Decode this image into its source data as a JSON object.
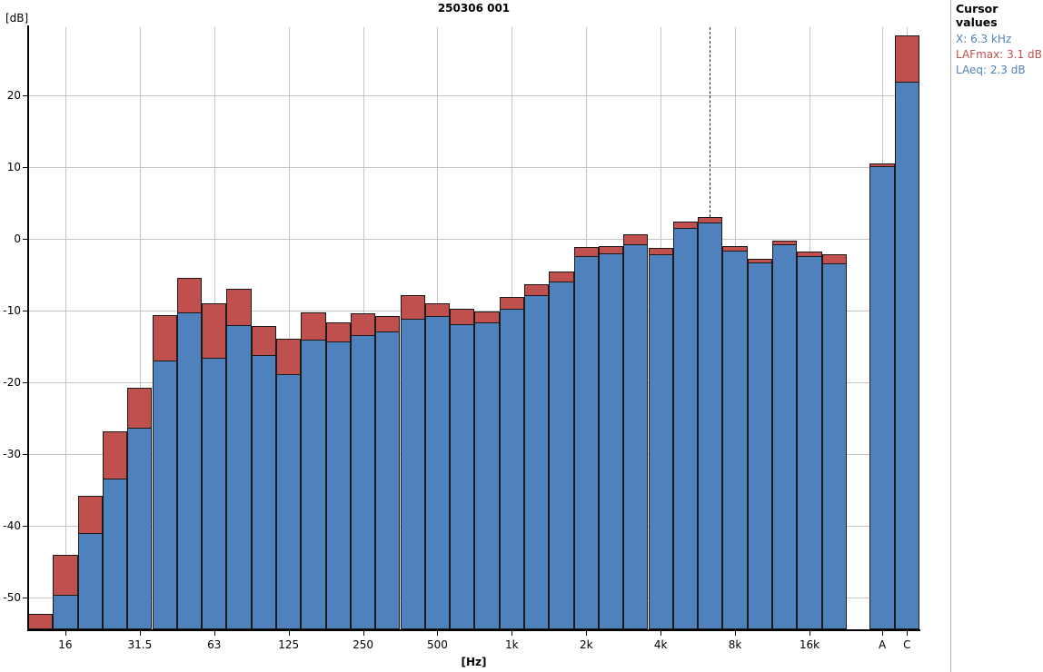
{
  "title": "250306 001",
  "y_unit_label": "[dB]",
  "x_unit_label": "[Hz]",
  "cursor_panel": {
    "title": "Cursor values",
    "x_value": "X: 6.3 kHz",
    "lafmax_value": "LAFmax: 3.1 dB",
    "laeq_value": "LAeq: 2.3 dB"
  },
  "colors": {
    "laeq_bar": "#4f81bd",
    "lafmax_bar": "#c0504d",
    "bar_border": "#1a1a1a",
    "grid": "#c6c6c6",
    "axis": "#000000",
    "panel_blue_text": "#4f81bd",
    "panel_red_text": "#c0504d"
  },
  "chart_data": {
    "type": "bar",
    "subtype": "third-octave-spectrum",
    "title": "250306 001",
    "xlabel": "[Hz]",
    "ylabel": "[dB]",
    "ylim": [
      -54.4,
      29.5
    ],
    "yticks": [
      20,
      10,
      0,
      -10,
      -20,
      -30,
      -40,
      -50
    ],
    "grid": true,
    "categories": [
      "12.5",
      "16",
      "20",
      "25",
      "31.5",
      "40",
      "50",
      "63",
      "80",
      "100",
      "125",
      "160",
      "200",
      "250",
      "315",
      "400",
      "500",
      "630",
      "800",
      "1k",
      "1.25k",
      "1.6k",
      "2k",
      "2.5k",
      "3.15k",
      "4k",
      "5k",
      "6.3k",
      "8k",
      "10k",
      "12.5k",
      "16k",
      "20k",
      "A",
      "C"
    ],
    "x_tick_labels": [
      "16",
      "31.5",
      "63",
      "125",
      "250",
      "500",
      "1k",
      "2k",
      "4k",
      "8k",
      "16k",
      "A",
      "C"
    ],
    "series": [
      {
        "name": "LAFmax",
        "color": "#c0504d",
        "values": [
          -52.3,
          -44.0,
          -35.8,
          -26.8,
          -20.7,
          -10.6,
          -5.4,
          -9.0,
          -6.9,
          -12.1,
          -13.9,
          -10.3,
          -11.6,
          -10.4,
          -10.7,
          -7.9,
          -9.0,
          -9.7,
          -10.1,
          -8.1,
          -6.3,
          -4.5,
          -1.2,
          -1.0,
          0.6,
          -1.3,
          2.4,
          3.1,
          -1.0,
          -2.8,
          -0.2,
          -1.8,
          -2.1,
          10.5,
          28.4
        ]
      },
      {
        "name": "LAeq",
        "color": "#4f81bd",
        "values": [
          -55.0,
          -49.6,
          -41.0,
          -33.4,
          -26.3,
          -17.0,
          -10.2,
          -16.6,
          -12.0,
          -16.2,
          -18.9,
          -14.1,
          -14.3,
          -13.4,
          -12.9,
          -11.1,
          -10.8,
          -11.9,
          -11.6,
          -9.8,
          -7.9,
          -5.9,
          -2.4,
          -2.0,
          -0.8,
          -2.1,
          1.5,
          2.3,
          -1.7,
          -3.3,
          -0.8,
          -2.4,
          -3.4,
          10.1,
          21.9
        ]
      }
    ],
    "cursor": {
      "band": "6.3k",
      "band_index": 27,
      "lafmax": 3.1,
      "laeq": 2.3
    },
    "legend_position": "none"
  }
}
